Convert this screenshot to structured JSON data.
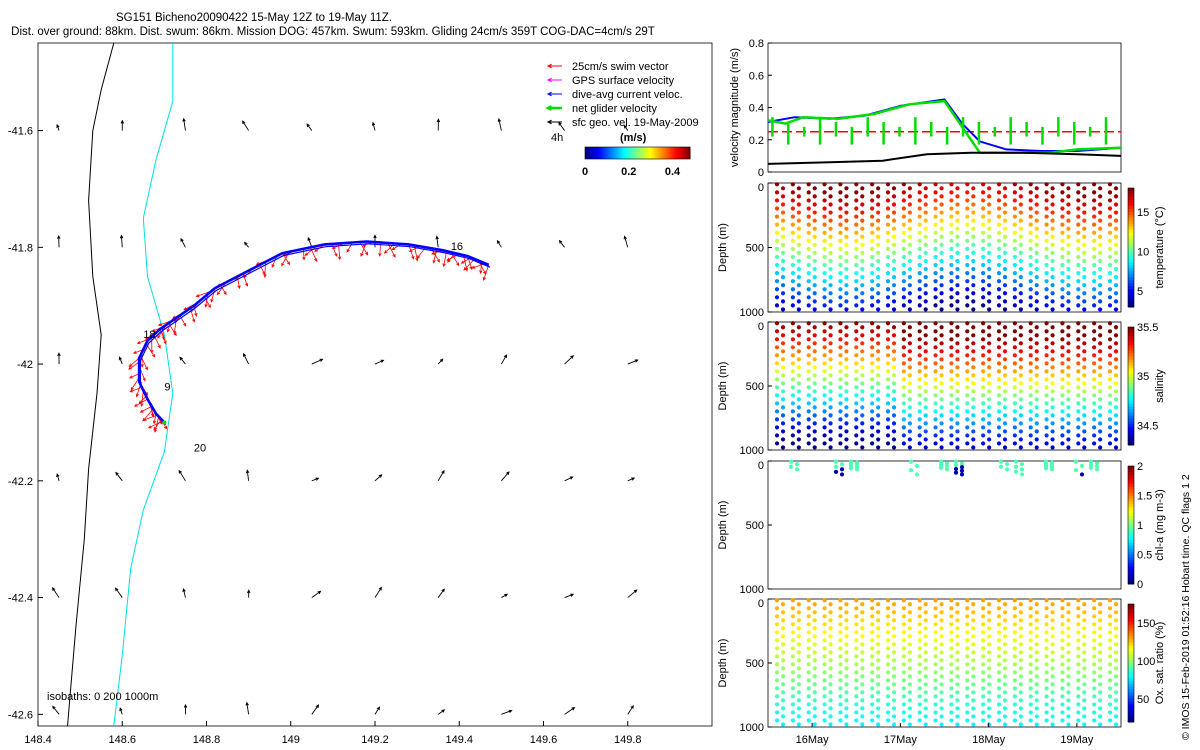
{
  "header": {
    "title": "SG151 Bicheno20090422 15-May 12Z to 19-May 11Z.",
    "subtitle": "Dist. over ground: 88km. Dist. swum: 86km. Mission DOG: 457km. Swum: 593km. Gliding 24cm/s 359T COG-DAC=4cm/s 29T"
  },
  "footer_note": "© IMOS 15-Feb-2019 01:52:16 Hobart time. QC flags 1 2",
  "colors": {
    "swim": "#ff0000",
    "gps": "#ff00ff",
    "dac": "#0000ff",
    "net": "#00dd00",
    "sfc": "#000000",
    "coast": "#000000",
    "isobath200": "#00e0e0"
  },
  "chart_data": [
    {
      "type": "scatter",
      "name": "map",
      "xlim": [
        148.4,
        150.0
      ],
      "ylim": [
        -42.62,
        -41.45
      ],
      "x_ticks": [
        148.4,
        148.6,
        148.8,
        149,
        149.2,
        149.4,
        149.6,
        149.8
      ],
      "x_tick_labels": [
        "148.4",
        "148.6",
        "148.8",
        "149",
        "149.2",
        "149.4",
        "149.6",
        "149.8"
      ],
      "y_ticks": [
        -41.6,
        -41.8,
        -42,
        -42.2,
        -42.4,
        -42.6
      ],
      "y_tick_labels": [
        "-41.6",
        "-41.8",
        "-42",
        "-42.2",
        "-42.4",
        "-42.6"
      ],
      "legend": {
        "entries": [
          "25cm/s swim vector",
          "GPS surface velocity",
          "dive-avg current veloc.",
          "net glider velocity",
          "sfc geo. vel. 19-May-2009"
        ],
        "colors": [
          "#ff0000",
          "#ff00ff",
          "#0000ff",
          "#00dd00",
          "#000000"
        ]
      },
      "colorbar": {
        "label": "(m/s)",
        "ticks": [
          "0",
          "0.2",
          "0.4"
        ],
        "range": [
          0,
          0.48
        ]
      },
      "time_label": "4h",
      "day_labels": [
        {
          "text": "16",
          "lon": 149.38,
          "lat": -41.805
        },
        {
          "text": "18",
          "lon": 148.65,
          "lat": -41.955
        },
        {
          "text": "9",
          "lon": 148.7,
          "lat": -42.045
        },
        {
          "text": "20",
          "lon": 148.77,
          "lat": -42.15
        }
      ],
      "isobath_note": "isobaths: 0   200  1000m",
      "track": [
        [
          149.47,
          -41.83
        ],
        [
          149.42,
          -41.815
        ],
        [
          149.36,
          -41.805
        ],
        [
          149.28,
          -41.795
        ],
        [
          149.18,
          -41.79
        ],
        [
          149.08,
          -41.795
        ],
        [
          148.98,
          -41.81
        ],
        [
          148.9,
          -41.84
        ],
        [
          148.82,
          -41.87
        ],
        [
          148.77,
          -41.9
        ],
        [
          148.72,
          -41.925
        ],
        [
          148.69,
          -41.94
        ],
        [
          148.66,
          -41.96
        ],
        [
          148.64,
          -41.99
        ],
        [
          148.64,
          -42.03
        ],
        [
          148.66,
          -42.06
        ],
        [
          148.68,
          -42.085
        ],
        [
          148.7,
          -42.1
        ]
      ],
      "coastline": [
        [
          148.58,
          -41.45
        ],
        [
          148.55,
          -41.53
        ],
        [
          148.53,
          -41.6
        ],
        [
          148.52,
          -41.72
        ],
        [
          148.53,
          -41.85
        ],
        [
          148.55,
          -41.95
        ],
        [
          148.54,
          -42.05
        ],
        [
          148.52,
          -42.18
        ],
        [
          148.51,
          -42.3
        ],
        [
          148.49,
          -42.45
        ],
        [
          148.47,
          -42.62
        ]
      ],
      "isobath200": [
        [
          148.72,
          -41.45
        ],
        [
          148.72,
          -41.55
        ],
        [
          148.68,
          -41.65
        ],
        [
          148.65,
          -41.75
        ],
        [
          148.66,
          -41.85
        ],
        [
          148.7,
          -41.95
        ],
        [
          148.72,
          -42.05
        ],
        [
          148.7,
          -42.15
        ],
        [
          148.65,
          -42.25
        ],
        [
          148.62,
          -42.35
        ],
        [
          148.6,
          -42.5
        ],
        [
          148.58,
          -42.62
        ]
      ],
      "sfc_vectors_note": "grid of black geostrophic vectors at 0.15-degree spacing"
    },
    {
      "type": "line",
      "name": "velocity",
      "ylabel": "velocity magnitude (m/s)",
      "ylim": [
        0,
        0.8
      ],
      "y_ticks": [
        0,
        0.2,
        0.4,
        0.6,
        0.8
      ],
      "x_range_days": [
        15.5,
        19.5
      ],
      "series": [
        {
          "color": "#0000ff",
          "values": [
            [
              15.5,
              0.31
            ],
            [
              15.8,
              0.34
            ],
            [
              16.2,
              0.33
            ],
            [
              16.6,
              0.35
            ],
            [
              17.0,
              0.41
            ],
            [
              17.5,
              0.45
            ],
            [
              17.7,
              0.3
            ],
            [
              17.9,
              0.19
            ],
            [
              18.2,
              0.14
            ],
            [
              18.6,
              0.13
            ],
            [
              19.0,
              0.13
            ],
            [
              19.5,
              0.15
            ]
          ]
        },
        {
          "color": "#00dd00",
          "values": [
            [
              15.5,
              0.32
            ],
            [
              15.7,
              0.3
            ],
            [
              15.9,
              0.34
            ],
            [
              16.3,
              0.33
            ],
            [
              16.7,
              0.36
            ],
            [
              17.1,
              0.42
            ],
            [
              17.5,
              0.44
            ],
            [
              17.7,
              0.28
            ],
            [
              17.9,
              0.12
            ],
            [
              18.3,
              0.12
            ],
            [
              18.7,
              0.12
            ],
            [
              19.0,
              0.14
            ],
            [
              19.5,
              0.15
            ]
          ]
        },
        {
          "color": "#000000",
          "values": [
            [
              15.5,
              0.05
            ],
            [
              16.2,
              0.06
            ],
            [
              16.8,
              0.07
            ],
            [
              17.3,
              0.11
            ],
            [
              17.8,
              0.12
            ],
            [
              18.4,
              0.12
            ],
            [
              19.0,
              0.11
            ],
            [
              19.5,
              0.1
            ]
          ]
        }
      ],
      "ref_line": 0.25,
      "ref_color": "#ff0000"
    },
    {
      "type": "scatter",
      "name": "temperature",
      "ylabel": "Depth (m)",
      "ylim": [
        1000,
        0
      ],
      "y_ticks": [
        0,
        500,
        1000
      ],
      "colorbar": {
        "label": "temperature (°C)",
        "ticks": [
          "5",
          "10",
          "15"
        ],
        "range": [
          3,
          18
        ]
      },
      "profiles": 22
    },
    {
      "type": "scatter",
      "name": "salinity",
      "ylabel": "Depth (m)",
      "ylim": [
        1000,
        0
      ],
      "y_ticks": [
        0,
        500,
        1000
      ],
      "colorbar": {
        "label": "salinity",
        "ticks": [
          "34.5",
          "35",
          "35.5"
        ],
        "range": [
          34.3,
          35.5
        ]
      },
      "profiles": 22
    },
    {
      "type": "scatter",
      "name": "chla",
      "ylabel": "Depth (m)",
      "ylim": [
        1000,
        0
      ],
      "y_ticks": [
        0,
        500,
        1000
      ],
      "colorbar": {
        "label": "chl-a (mg m-3)",
        "ticks": [
          "0",
          "0.5",
          "1",
          "1.5",
          "2"
        ],
        "range": [
          0,
          2
        ]
      },
      "profiles": 11
    },
    {
      "type": "scatter",
      "name": "oxygen",
      "ylabel": "Depth (m)",
      "ylim": [
        1000,
        0
      ],
      "y_ticks": [
        0,
        500,
        1000
      ],
      "colorbar": {
        "label": "Ox. sat. ratio (%)",
        "ticks": [
          "50",
          "100",
          "150"
        ],
        "range": [
          20,
          175
        ]
      },
      "profiles": 22,
      "x_tick_labels": [
        "16May",
        "17May",
        "18May",
        "19May"
      ]
    }
  ]
}
